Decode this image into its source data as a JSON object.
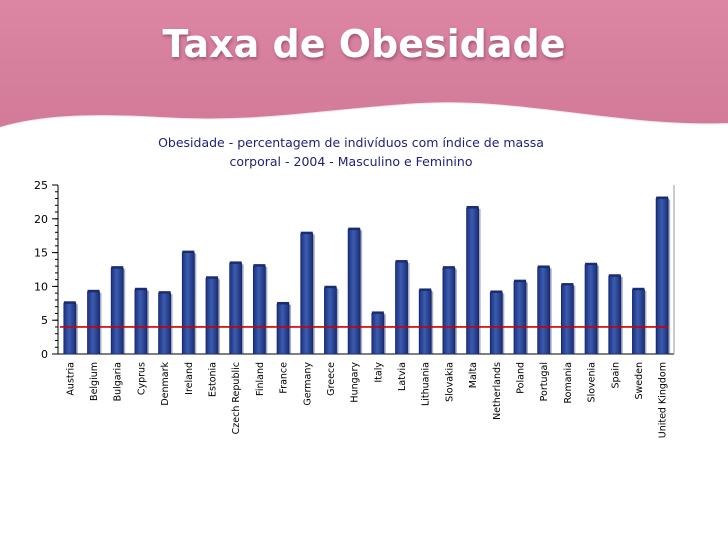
{
  "slide": {
    "title": "Taxa de Obesidade"
  },
  "colors": {
    "banner": "#d9829f",
    "bar": "#2e4b9a",
    "bar_dark": "#14266a",
    "reference_line": "#cc0000"
  },
  "chart_data": {
    "type": "bar",
    "title_lines": [
      "Obesidade - percentagem de indivíduos com índice de massa",
      "corporal  - 2004 - Masculino e Feminino"
    ],
    "categories": [
      "Austria",
      "Belgium",
      "Bulgaria",
      "Cyprus",
      "Denmark",
      "Ireland",
      "Estonia",
      "Czech Republic",
      "Finland",
      "France",
      "Germany",
      "Greece",
      "Hungary",
      "Italy",
      "Latvia",
      "Lithuania",
      "Slovakia",
      "Malta",
      "Netherlands",
      "Poland",
      "Portugal",
      "Romania",
      "Slovenia",
      "Spain",
      "Sweden",
      "United Kingdom"
    ],
    "values": [
      7.5,
      9.2,
      12.7,
      9.5,
      9.0,
      15.0,
      11.2,
      13.4,
      13.0,
      7.4,
      17.8,
      9.8,
      18.4,
      6.0,
      13.6,
      9.4,
      12.7,
      21.6,
      9.1,
      10.7,
      12.8,
      10.2,
      13.2,
      11.5,
      9.5,
      23.0
    ],
    "reference_line": 4,
    "ylim": [
      0,
      25
    ],
    "yticks": [
      "0",
      "5",
      "10",
      "15",
      "20",
      "25"
    ],
    "xlabel": "",
    "ylabel": "",
    "grid": false,
    "legend": "none"
  }
}
